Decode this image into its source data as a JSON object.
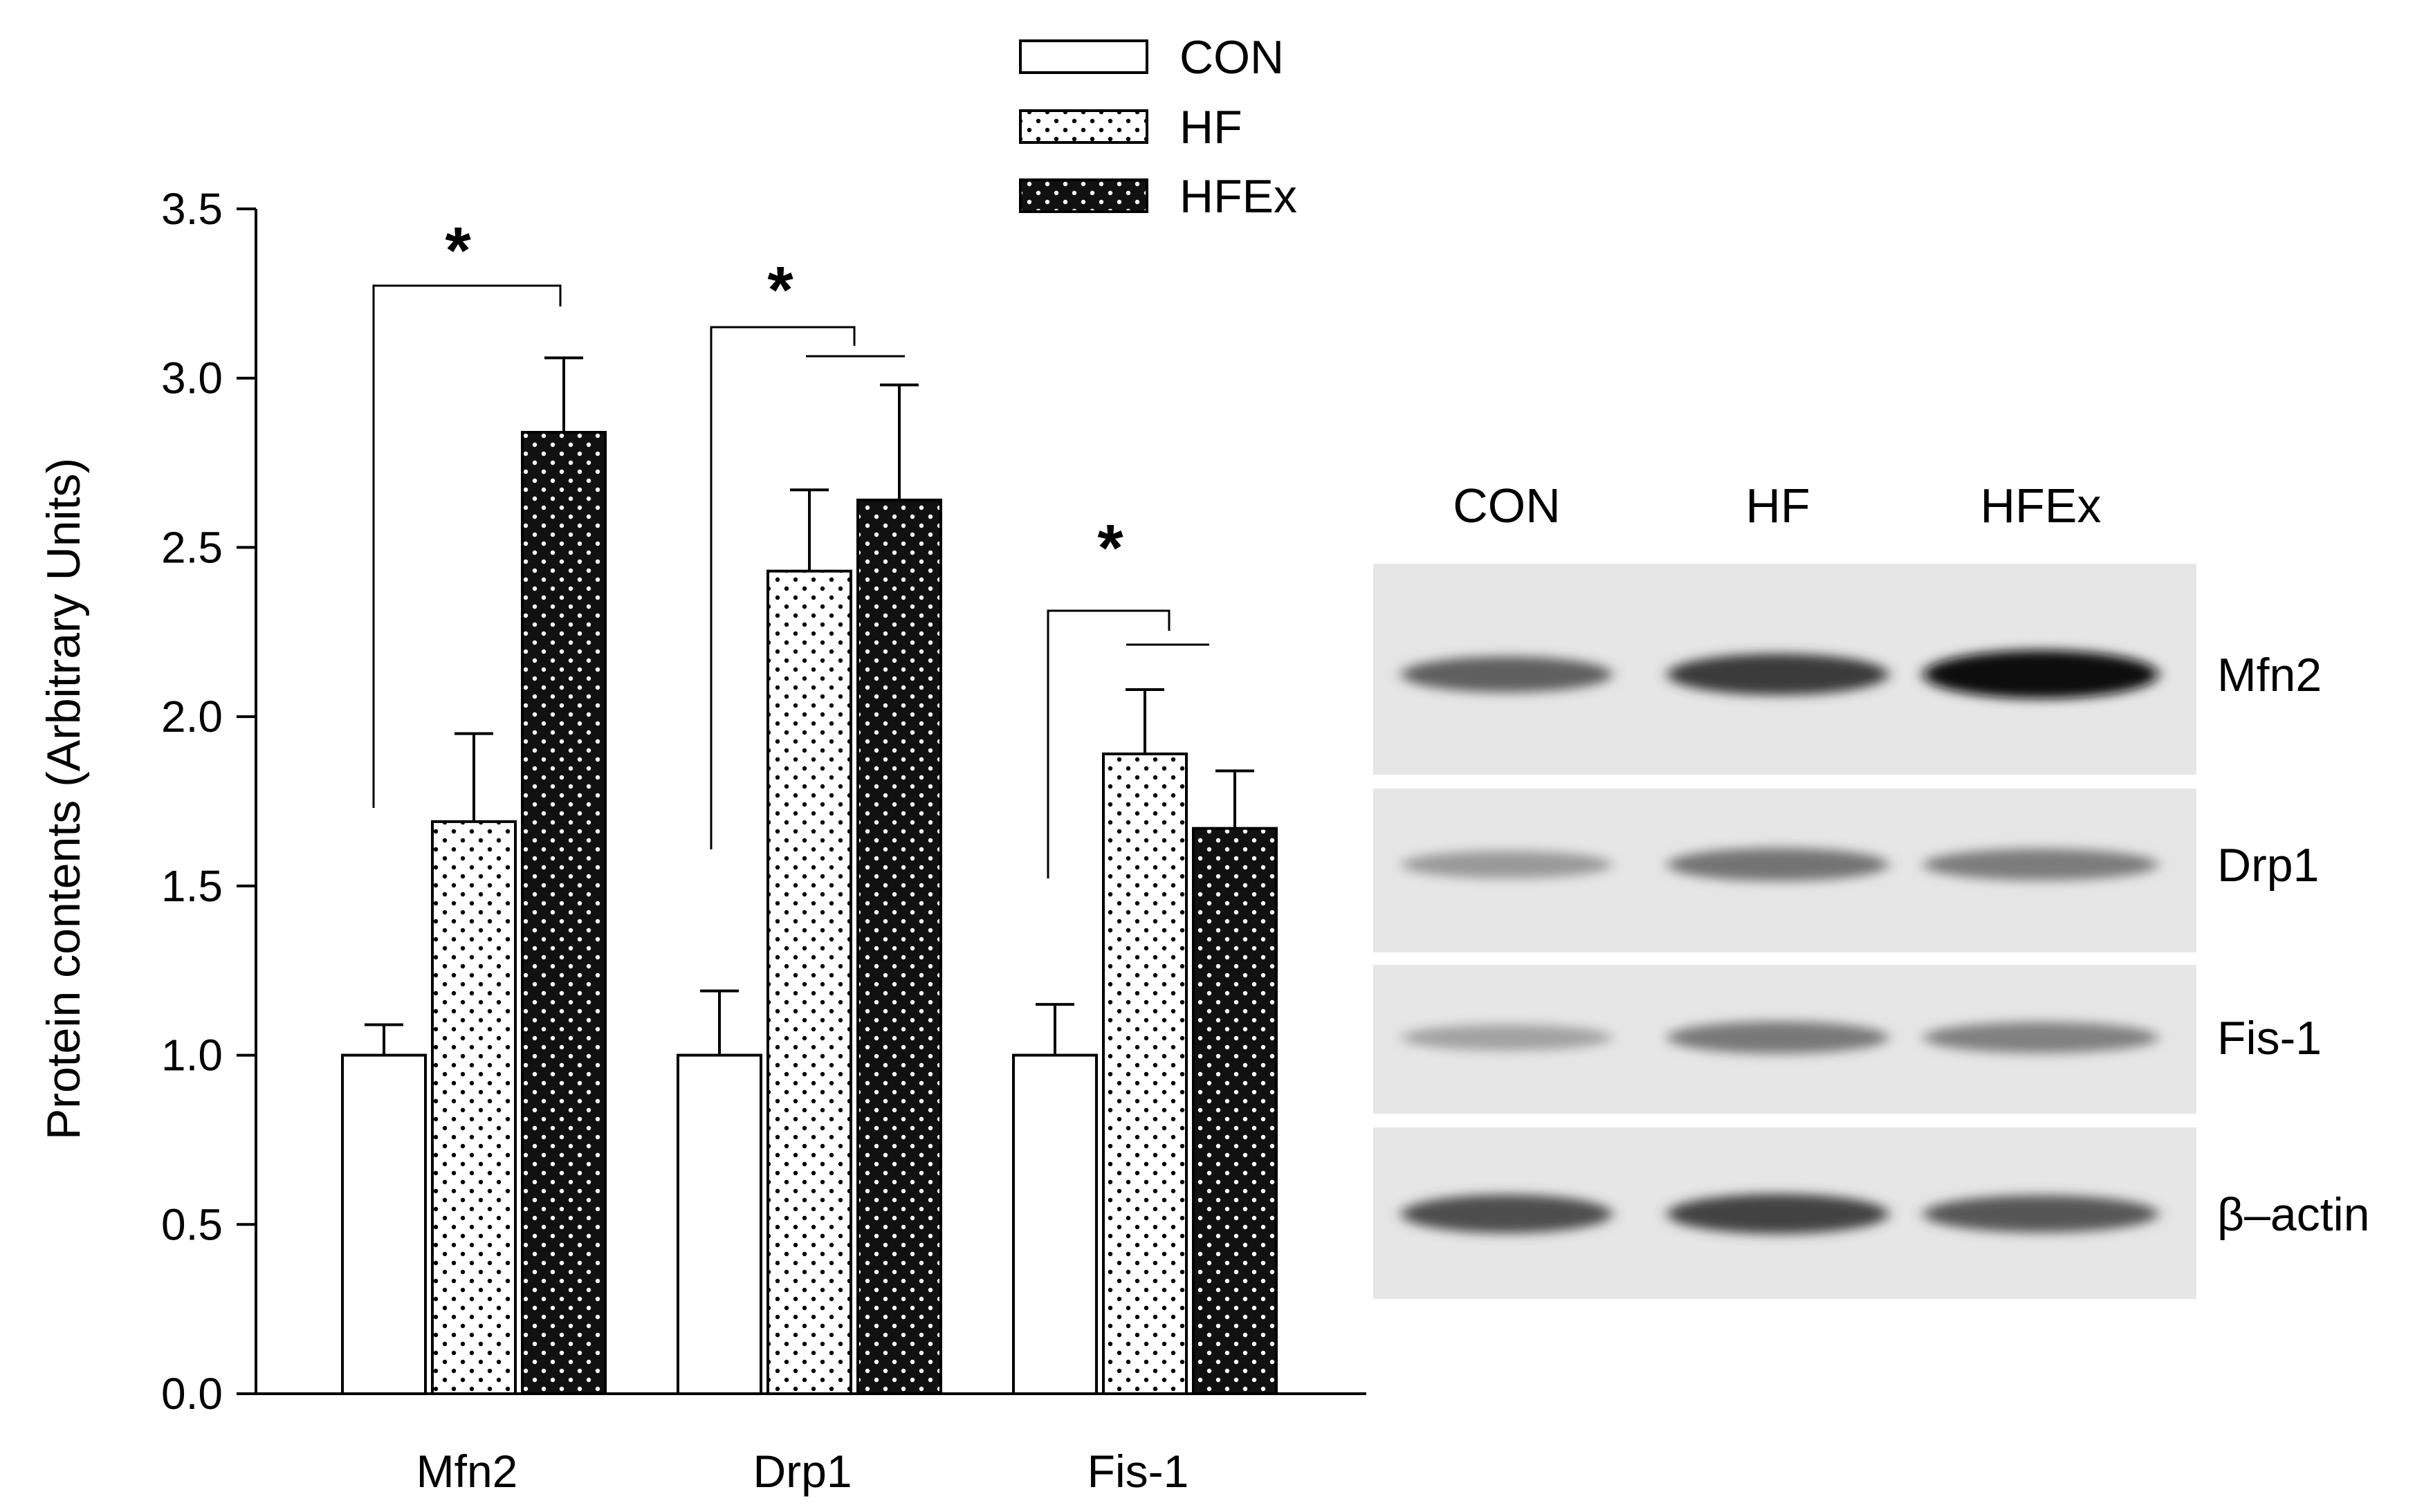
{
  "chart_data": {
    "type": "bar",
    "title": "",
    "ylabel": "Protein contents (Arbitrary Units)",
    "xlabel": "",
    "ylim": [
      0,
      3.5
    ],
    "yticks": [
      "0.0",
      "0.5",
      "1.0",
      "1.5",
      "2.0",
      "2.5",
      "3.0",
      "3.5"
    ],
    "categories": [
      "Mfn2",
      "Drp1",
      "Fis-1"
    ],
    "legend_position": "top-center",
    "grid": false,
    "series": [
      {
        "name": "CON",
        "style": "white",
        "values": [
          1.0,
          1.0,
          1.0
        ],
        "errors": [
          0.09,
          0.19,
          0.15
        ]
      },
      {
        "name": "HF",
        "style": "dotted",
        "values": [
          1.69,
          2.43,
          1.89
        ],
        "errors": [
          0.26,
          0.24,
          0.19
        ]
      },
      {
        "name": "HFEx",
        "style": "black",
        "values": [
          2.84,
          2.64,
          1.67
        ],
        "errors": [
          0.22,
          0.34,
          0.17
        ]
      }
    ],
    "annotations": [
      {
        "text": "*",
        "category": "Mfn2",
        "compare": "CON vs HFEx"
      },
      {
        "text": "*",
        "category": "Drp1",
        "compare": "CON vs HF, HFEx"
      },
      {
        "text": "*",
        "category": "Fis-1",
        "compare": "CON vs HF, HFEx"
      }
    ]
  },
  "blot": {
    "lanes": [
      "CON",
      "HF",
      "HFEx"
    ],
    "rows": [
      {
        "label": "Mfn2",
        "intensity": [
          0.55,
          0.75,
          1.0
        ]
      },
      {
        "label": "Drp1",
        "intensity": [
          0.25,
          0.45,
          0.4
        ]
      },
      {
        "label": "Fis-1",
        "intensity": [
          0.2,
          0.42,
          0.38
        ]
      },
      {
        "label": "β–actin",
        "intensity": [
          0.65,
          0.7,
          0.6
        ]
      }
    ]
  },
  "colors": {
    "axis": "#000000",
    "dark_bar": "#111111",
    "blot_bg": "#e6e6e6"
  }
}
